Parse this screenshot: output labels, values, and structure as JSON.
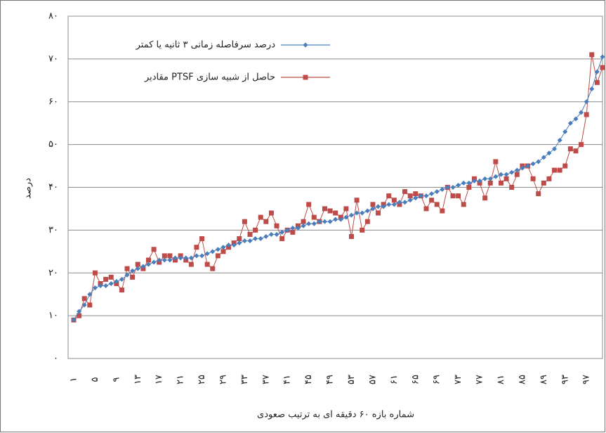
{
  "chart_data": {
    "type": "line",
    "x_label": "شماره بازه ۶۰ دقیقه ای به ترتیب صعودی",
    "y_label": "درصد",
    "categories": [
      "۱",
      null,
      null,
      null,
      "۵",
      null,
      null,
      null,
      "۹",
      null,
      null,
      null,
      "۱۳",
      null,
      null,
      null,
      "۱۷",
      null,
      null,
      null,
      "۲۱",
      null,
      null,
      null,
      "۲۵",
      null,
      null,
      null,
      "۲۹",
      null,
      null,
      null,
      "۳۳",
      null,
      null,
      null,
      "۳۷",
      null,
      null,
      null,
      "۴۱",
      null,
      null,
      null,
      "۴۵",
      null,
      null,
      null,
      "۴۹",
      null,
      null,
      null,
      "۵۳",
      null,
      null,
      null,
      "۵۷",
      null,
      null,
      null,
      "۶۱",
      null,
      null,
      null,
      "۶۵",
      null,
      null,
      null,
      "۶۹",
      null,
      null,
      null,
      "۷۳",
      null,
      null,
      null,
      "۷۷",
      null,
      null,
      null,
      "۸۱",
      null,
      null,
      null,
      "۸۵",
      null,
      null,
      null,
      "۸۹",
      null,
      null,
      null,
      "۹۳",
      null,
      null,
      null,
      "۹۷",
      null,
      null,
      null
    ],
    "series": [
      {
        "name": "درصد سرفاصله زمانی ۳ ثانیه یا کمتر",
        "color": "#4a7ebb",
        "marker": "diamond",
        "values": [
          9,
          11,
          12.5,
          15,
          16.5,
          17,
          17,
          17.5,
          18,
          18.5,
          19.5,
          20.5,
          21,
          21.5,
          22,
          22.5,
          23,
          23,
          23,
          23.5,
          23.5,
          23.5,
          23.5,
          24,
          24,
          24.5,
          25,
          25.5,
          26,
          26.5,
          26.5,
          27,
          27.5,
          27.5,
          28,
          28,
          28.5,
          29,
          29,
          29.5,
          30,
          30.5,
          30.5,
          31,
          31.5,
          31.5,
          32,
          32,
          32,
          32.5,
          32.5,
          33,
          33.5,
          34,
          34,
          34.5,
          35,
          35.5,
          35.5,
          36,
          36,
          36.5,
          36.5,
          37,
          37.5,
          38,
          38,
          38.5,
          39,
          39.5,
          40,
          40,
          40.5,
          41,
          41,
          41.5,
          41.5,
          42,
          42,
          42.5,
          43,
          43,
          43.5,
          44,
          44.5,
          45,
          45.5,
          46,
          47,
          48,
          49,
          51,
          53,
          55,
          56,
          57.5,
          60,
          63,
          67,
          70.5
        ]
      },
      {
        "name": "مقادیر PTSF حاصل از شبیه سازی",
        "color": "#be4b48",
        "marker": "square",
        "values": [
          9,
          10,
          14,
          12.5,
          20,
          17.5,
          18.5,
          19,
          17.5,
          16,
          21,
          19,
          22,
          21,
          23,
          25.5,
          22.5,
          24,
          24,
          23,
          24,
          23,
          22,
          26,
          28,
          22,
          21,
          24,
          25,
          26,
          27,
          28,
          32,
          29,
          30,
          33,
          32,
          34,
          31,
          28,
          30,
          29.5,
          31,
          32,
          36,
          33,
          32,
          35,
          34.5,
          34,
          33,
          35,
          28.5,
          37,
          30,
          32,
          36,
          34,
          36,
          38,
          37,
          36,
          39,
          38,
          38.5,
          38,
          35,
          37,
          36,
          34.5,
          40,
          38,
          38,
          36,
          40,
          42,
          41,
          37.5,
          41,
          46,
          41,
          42,
          40,
          43,
          45,
          45,
          42,
          38.5,
          41,
          42,
          44,
          44,
          45,
          49,
          48.5,
          50,
          57,
          71,
          64.5,
          68
        ]
      }
    ],
    "ylim": [
      0,
      80
    ],
    "yticks": [
      {
        "value": 0,
        "label": "۰"
      },
      {
        "value": 10,
        "label": "۱۰"
      },
      {
        "value": 20,
        "label": "۲۰"
      },
      {
        "value": 30,
        "label": "۳۰"
      },
      {
        "value": 40,
        "label": "۴۰"
      },
      {
        "value": 50,
        "label": "۵۰"
      },
      {
        "value": 60,
        "label": "۶۰"
      },
      {
        "value": 70,
        "label": "۷۰"
      },
      {
        "value": 80,
        "label": "۸۰"
      }
    ],
    "grid": true,
    "legend": "upper-left"
  }
}
